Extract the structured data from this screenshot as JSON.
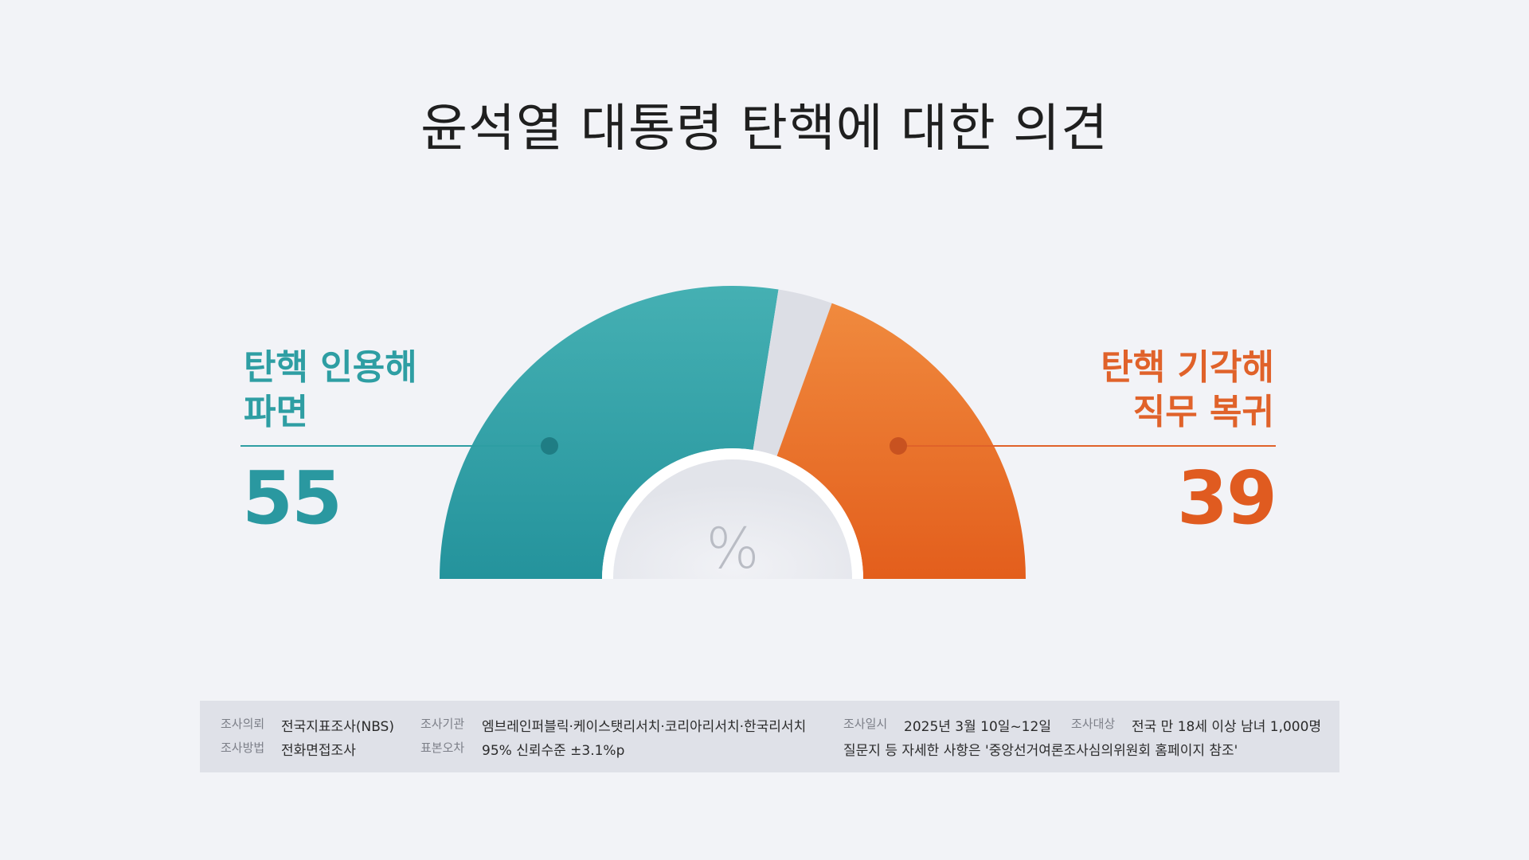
{
  "chart_data": {
    "type": "gauge",
    "title": "윤석열 대통령 탄핵에 대한 의견",
    "unit": "%",
    "series": [
      {
        "name": "탄핵 인용해 파면",
        "name_lines": [
          "탄핵 인용해",
          "파면"
        ],
        "value": 55,
        "color": "#2e9ea3"
      },
      {
        "name": "",
        "value": 6,
        "color": "#dcdee5"
      },
      {
        "name": "탄핵 기각해 직무 복귀",
        "name_lines": [
          "탄핵 기각해",
          "직무 복귀"
        ],
        "value": 39,
        "color": "#e8702e"
      }
    ]
  },
  "labels": {
    "left_line1": "탄핵 인용해",
    "left_line2": "파면",
    "left_value": "55",
    "right_line1": "탄핵 기각해",
    "right_line2": "직무 복귀",
    "right_value": "39",
    "unit": "%"
  },
  "info": {
    "client_label": "조사의뢰",
    "client_value": "전국지표조사(NBS)",
    "agency_label": "조사기관",
    "agency_value": "엠브레인퍼블릭·케이스탯리서치·코리아리서치·한국리서치",
    "date_label": "조사일시",
    "date_value": "2025년 3월 10일~12일",
    "target_label": "조사대상",
    "target_value": "전국 만 18세 이상 남녀 1,000명",
    "method_label": "조사방법",
    "method_value": "전화면접조사",
    "error_label": "표본오차",
    "error_value": "95% 신뢰수준 ±3.1%p",
    "note": "질문지 등 자세한 사항은 '중앙선거여론조사심의위원회 홈페이지 참조'"
  }
}
